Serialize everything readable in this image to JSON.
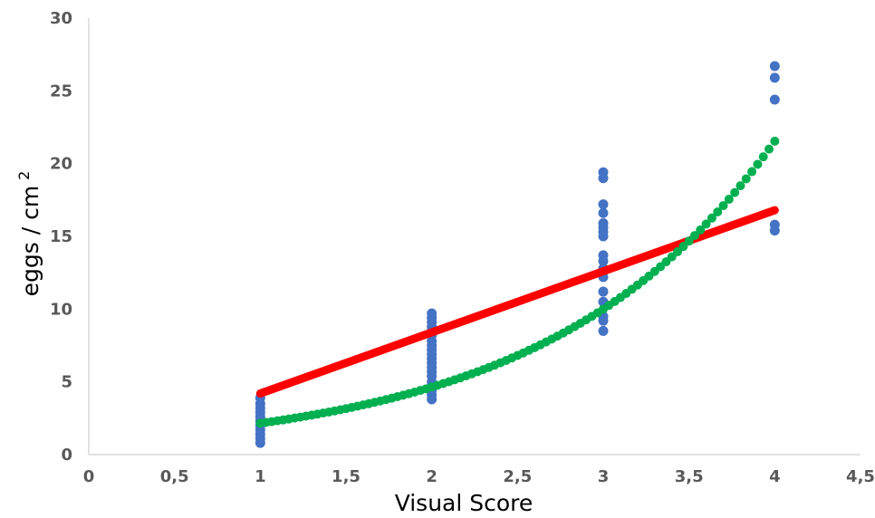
{
  "chart_data": {
    "type": "scatter",
    "xlabel": "Visual Score",
    "ylabel": "eggs / cm",
    "ylabel_superscript": "2",
    "xlim": [
      0,
      4.5
    ],
    "ylim": [
      0,
      30
    ],
    "x_ticks": [
      "0",
      "0,5",
      "1",
      "1,5",
      "2",
      "2,5",
      "3",
      "3,5",
      "4",
      "4,5"
    ],
    "y_ticks": [
      "0",
      "5",
      "10",
      "15",
      "20",
      "25",
      "30"
    ],
    "grid": false,
    "legend": "none",
    "colors": {
      "points": "#4472C4",
      "linear_fit": "#FF0000",
      "exponential_fit": "#00B050",
      "axis": "#D9D9D9",
      "tick_text": "#595959"
    },
    "series": [
      {
        "kind": "points",
        "points": [
          [
            1,
            0.8
          ],
          [
            1,
            1.1
          ],
          [
            1,
            1.4
          ],
          [
            1,
            1.7
          ],
          [
            1,
            2.0
          ],
          [
            1,
            2.3
          ],
          [
            1,
            2.6
          ],
          [
            1,
            2.9
          ],
          [
            1,
            3.2
          ],
          [
            1,
            3.5
          ],
          [
            1,
            3.9
          ],
          [
            2,
            3.8
          ],
          [
            2,
            4.1
          ],
          [
            2,
            4.4
          ],
          [
            2,
            4.7
          ],
          [
            2,
            5.0
          ],
          [
            2,
            5.4
          ],
          [
            2,
            5.7
          ],
          [
            2,
            6.0
          ],
          [
            2,
            6.3
          ],
          [
            2,
            6.6
          ],
          [
            2,
            6.9
          ],
          [
            2,
            7.2
          ],
          [
            2,
            7.5
          ],
          [
            2,
            7.8
          ],
          [
            2,
            8.2
          ],
          [
            2,
            8.5
          ],
          [
            2,
            8.8
          ],
          [
            2,
            9.1
          ],
          [
            2,
            9.4
          ],
          [
            2,
            9.7
          ],
          [
            3,
            8.5
          ],
          [
            3,
            9.2
          ],
          [
            3,
            9.5
          ],
          [
            3,
            10.5
          ],
          [
            3,
            11.2
          ],
          [
            3,
            12.2
          ],
          [
            3,
            12.8
          ],
          [
            3,
            13.3
          ],
          [
            3,
            13.7
          ],
          [
            3,
            15.0
          ],
          [
            3,
            15.3
          ],
          [
            3,
            15.6
          ],
          [
            3,
            15.9
          ],
          [
            3,
            16.6
          ],
          [
            3,
            17.2
          ],
          [
            3,
            19.0
          ],
          [
            3,
            19.4
          ],
          [
            4,
            15.4
          ],
          [
            4,
            15.8
          ],
          [
            4,
            24.4
          ],
          [
            4,
            25.9
          ],
          [
            4,
            26.7
          ]
        ]
      },
      {
        "kind": "linear",
        "x_range": [
          1,
          4
        ],
        "intercept": 0.0,
        "slope": 4.2
      },
      {
        "kind": "exponential",
        "x_range": [
          1,
          4
        ],
        "a": 1.0,
        "b": 0.7675
      }
    ]
  }
}
